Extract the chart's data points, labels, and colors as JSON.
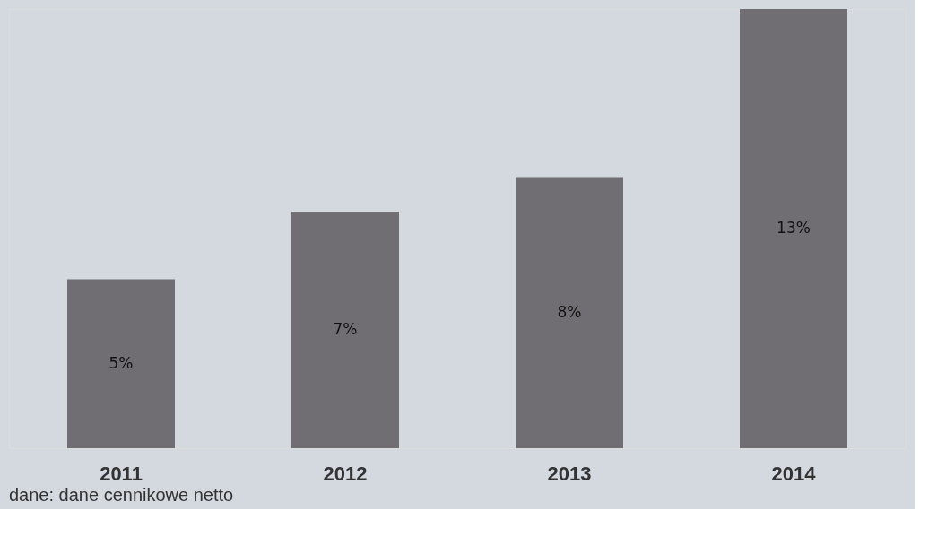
{
  "chart_data": {
    "type": "bar",
    "categories": [
      "2011",
      "2012",
      "2013",
      "2014"
    ],
    "values": [
      5,
      7,
      8,
      13
    ],
    "value_labels": [
      "5%",
      "7%",
      "8%",
      "13%"
    ],
    "color": "#706e72",
    "ylim": [
      0,
      13
    ],
    "tick_labels": "x",
    "grid": false,
    "annotations": [
      "dane: dane cennikowe netto"
    ]
  }
}
